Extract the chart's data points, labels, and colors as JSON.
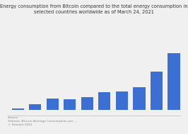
{
  "title": "Energy consumption from Bitcoin compared to the total energy consumption in\nselected countries worldwide as of March 24, 2021",
  "title_fontsize": 4.8,
  "values": [
    2,
    8,
    15,
    14,
    17,
    24,
    25,
    31,
    52,
    77
  ],
  "bar_color": "#3b6fd4",
  "background_color": "#f0f0f0",
  "plot_bg_color": "#f0f0f0",
  "grid_color": "#cccccc",
  "source_text": "Source:\nStatista, Bitcoin Average Consumption per ...\n© Statista 2021",
  "source_fontsize": 3.2,
  "ylim": [
    0,
    85
  ],
  "tick_fontsize": 4.0
}
